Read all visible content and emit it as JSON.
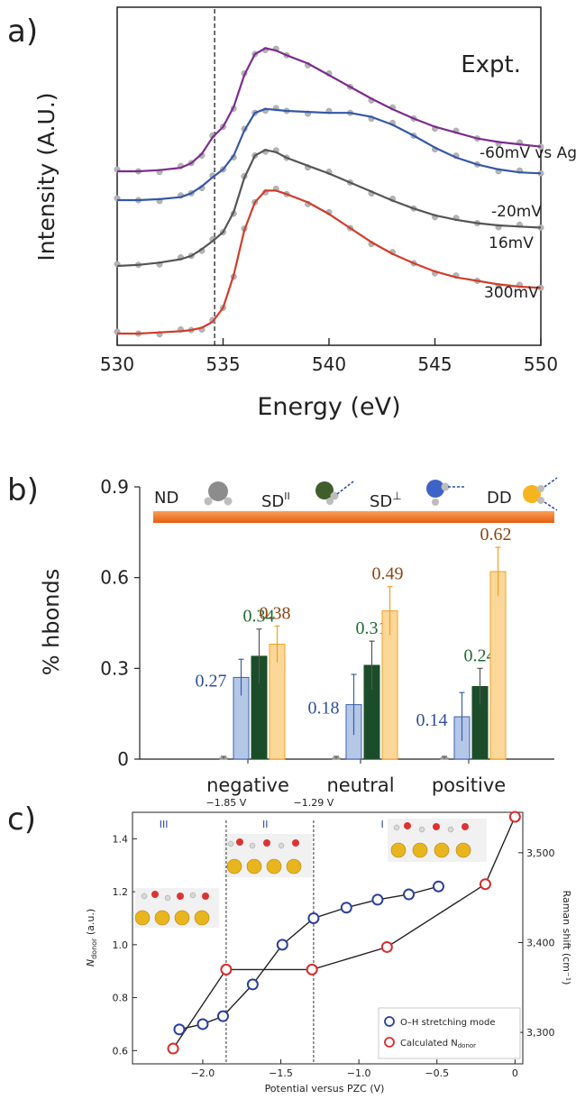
{
  "chart_data": [
    {
      "type": "line",
      "panel_label": "a)",
      "xlabel": "Energy (eV)",
      "ylabel": "Intensity (A.U.)",
      "xlim": [
        530,
        550
      ],
      "xticks": [
        "530",
        "535",
        "540",
        "545",
        "550"
      ],
      "annotation": "Expt.",
      "vertical_marker_x": 534.6,
      "series": [
        {
          "name": "-60mV vs Ag",
          "color": "#7b2d8e",
          "x": [
            530,
            531,
            532,
            533,
            533.5,
            534,
            534.5,
            535,
            535.5,
            536,
            536.5,
            537,
            537.5,
            538,
            539,
            540,
            541,
            542,
            543,
            544,
            545,
            546,
            547,
            548,
            549,
            550
          ],
          "y": [
            0.0,
            0.0,
            0.01,
            0.03,
            0.07,
            0.15,
            0.29,
            0.38,
            0.55,
            0.82,
            1.0,
            1.05,
            1.03,
            0.99,
            0.92,
            0.82,
            0.72,
            0.62,
            0.53,
            0.45,
            0.38,
            0.33,
            0.28,
            0.25,
            0.23,
            0.21
          ]
        },
        {
          "name": "-20mV",
          "color": "#3557a8",
          "x": [
            530,
            531,
            532,
            533,
            533.5,
            534,
            534.5,
            535,
            535.5,
            536,
            536.5,
            537,
            537.5,
            538,
            539,
            540,
            541,
            542,
            543,
            544,
            545,
            546,
            547,
            548,
            549,
            550
          ],
          "y": [
            0.0,
            0.0,
            0.01,
            0.03,
            0.07,
            0.14,
            0.23,
            0.31,
            0.45,
            0.7,
            0.88,
            0.92,
            0.91,
            0.9,
            0.89,
            0.88,
            0.88,
            0.84,
            0.76,
            0.65,
            0.53,
            0.43,
            0.36,
            0.31,
            0.28,
            0.27
          ]
        },
        {
          "name": "16mV",
          "color": "#555555",
          "x": [
            530,
            531,
            532,
            533,
            533.5,
            534,
            534.5,
            535,
            535.5,
            536,
            536.5,
            537,
            537.5,
            538,
            539,
            540,
            541,
            542,
            543,
            544,
            545,
            546,
            547,
            548,
            549,
            550
          ],
          "y": [
            0.0,
            0.01,
            0.03,
            0.06,
            0.09,
            0.15,
            0.22,
            0.3,
            0.48,
            0.78,
            0.98,
            1.03,
            1.01,
            0.96,
            0.89,
            0.82,
            0.74,
            0.66,
            0.58,
            0.51,
            0.45,
            0.41,
            0.38,
            0.36,
            0.35,
            0.34
          ]
        },
        {
          "name": "300mV",
          "color": "#d23c2a",
          "x": [
            530,
            531,
            532,
            533,
            533.5,
            534,
            534.5,
            535,
            535.5,
            536,
            536.5,
            537,
            537.5,
            538,
            539,
            540,
            541,
            542,
            543,
            544,
            545,
            546,
            547,
            548,
            549,
            550
          ],
          "y": [
            0.0,
            0.0,
            0.01,
            0.02,
            0.03,
            0.05,
            0.1,
            0.22,
            0.5,
            0.88,
            1.12,
            1.22,
            1.22,
            1.19,
            1.12,
            1.02,
            0.9,
            0.78,
            0.68,
            0.6,
            0.53,
            0.48,
            0.45,
            0.42,
            0.4,
            0.39
          ]
        }
      ]
    },
    {
      "type": "bar",
      "panel_label": "b)",
      "ylabel": "% hbonds",
      "ylim": [
        0,
        0.9
      ],
      "yticks": [
        "0",
        "0.3",
        "0.6",
        "0.9"
      ],
      "categories": [
        "negative",
        "neutral",
        "positive"
      ],
      "series": [
        {
          "name": "ND",
          "color": "#9a9a9a",
          "values": [
            0.005,
            0.005,
            0.005
          ],
          "errors": [
            0.004,
            0.004,
            0.004
          ]
        },
        {
          "name": "SD||",
          "color": "#b4c7e7",
          "edge": "#3a5fa8",
          "values": [
            0.27,
            0.18,
            0.14
          ],
          "errors": [
            0.06,
            0.1,
            0.08
          ],
          "labels": [
            "0.27",
            "0.18",
            "0.14"
          ],
          "label_color": "#2f4fa0"
        },
        {
          "name": "SD⊥",
          "color": "#1b4d2a",
          "values": [
            0.34,
            0.31,
            0.24
          ],
          "errors": [
            0.09,
            0.08,
            0.06
          ],
          "labels": [
            "0.34",
            "0.31",
            "0.24"
          ],
          "label_color": "#1f6b34"
        },
        {
          "name": "DD",
          "color": "#fbd89a",
          "edge": "#f0a020",
          "values": [
            0.38,
            0.49,
            0.62
          ],
          "errors": [
            0.06,
            0.08,
            0.08
          ],
          "labels": [
            "0.38",
            "0.49",
            "0.62"
          ],
          "label_color": "#8b4513"
        }
      ],
      "legend_labels": {
        "nd": "ND",
        "sdpar_main": "SD",
        "sdpar_sup": "II",
        "sdperp_main": "SD",
        "sdperp_sup": "⊥",
        "dd": "DD"
      }
    },
    {
      "type": "line",
      "panel_label": "c)",
      "xlabel": "Potential versus PZC (V)",
      "ylabel_main": "N",
      "ylabel_sub": "donor",
      "ylabel_unit": " (a.u.)",
      "y2label": "Raman shift (cm⁻¹)",
      "xlim": [
        -2.45,
        0.05
      ],
      "ylim": [
        0.55,
        1.5
      ],
      "y2lim": [
        3265,
        3545
      ],
      "xticks": [
        "−2.0",
        "−1.5",
        "−1.0",
        "−0.5",
        "0"
      ],
      "yticks": [
        "0.6",
        "0.8",
        "1.0",
        "1.2",
        "1.4"
      ],
      "y2ticks": [
        "3,300",
        "3,400",
        "3,500"
      ],
      "regions": [
        "III",
        "II",
        "I"
      ],
      "dividers": [
        {
          "x": -1.85,
          "label": "−1.85 V"
        },
        {
          "x": -1.29,
          "label": "−1.29 V"
        }
      ],
      "series": [
        {
          "name": "O–H stretching mode",
          "color": "#2a3f9c",
          "axis": "left",
          "x": [
            -2.15,
            -2.0,
            -1.87,
            -1.68,
            -1.49,
            -1.29,
            -1.08,
            -0.88,
            -0.68,
            -0.49
          ],
          "y": [
            0.68,
            0.7,
            0.73,
            0.85,
            1.0,
            1.1,
            1.14,
            1.17,
            1.19,
            1.22
          ]
        },
        {
          "name": "Calculated N",
          "name_sub": "donor",
          "color": "#d92b2b",
          "axis": "right",
          "x": [
            -2.19,
            -1.85,
            -1.3,
            -0.82,
            -0.19,
            0.0
          ],
          "y": [
            3282,
            3370,
            3370,
            3395,
            3465,
            3540
          ]
        }
      ]
    }
  ]
}
